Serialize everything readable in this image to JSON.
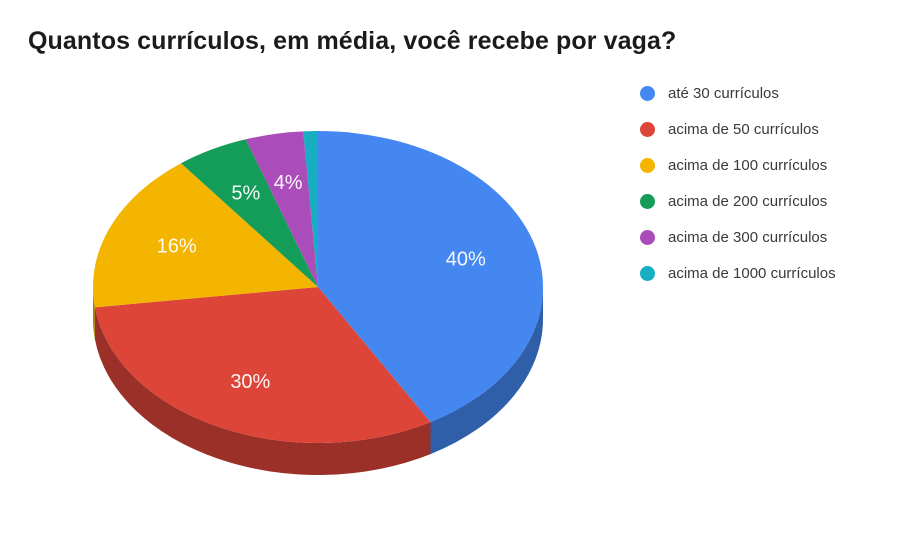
{
  "chart_data": {
    "type": "pie",
    "is_3d": true,
    "title": "Quantos currículos, em média, você recebe por vaga?",
    "legend_position": "right",
    "label_color": "#ffffff",
    "background": "#ffffff",
    "slices": [
      {
        "label": "até 30 currículos",
        "value": 40,
        "display": "40%",
        "color": "#4587F1"
      },
      {
        "label": "acima de 50 currículos",
        "value": 30,
        "display": "30%",
        "color": "#DC4538"
      },
      {
        "label": "acima de 100 currículos",
        "value": 16,
        "display": "16%",
        "color": "#F3B500"
      },
      {
        "label": "acima de 200 currículos",
        "value": 5,
        "display": "5%",
        "color": "#149D58"
      },
      {
        "label": "acima de 300 currículos",
        "value": 4,
        "display": "4%",
        "color": "#AA4DBA"
      },
      {
        "label": "acima de 1000 currículos",
        "value": 1,
        "display": "",
        "color": "#16AEC0"
      }
    ]
  }
}
